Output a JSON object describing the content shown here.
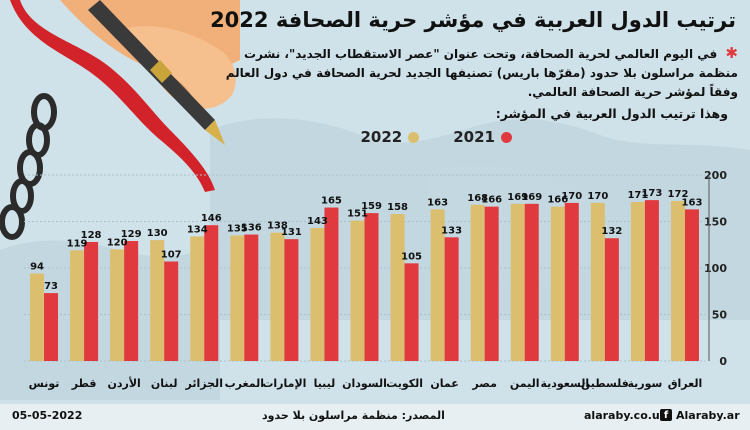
{
  "title": "ترتيب الدول العربية في مؤشر حرية الصحافة 2022",
  "intro": {
    "t1": "في اليوم العالمي لحرية الصحافة، وتحت عنوان ",
    "t2": "\"عصر الاستقطاب الجديد\"",
    "t3": "، نشرت ",
    "t4": "منظمة مراسلون بلا حدود",
    "t5": " (مقرّها باريس) تصنيفها الجديد ",
    "t6": "لحرية الصحافة",
    "t7": " في دول العالم ",
    "t8": "وفقاً لمؤشر حرية الصحافة العالمي."
  },
  "subtitle": "وهذا ترتيب الدول العربية في المؤشر:",
  "legend": {
    "y2021": "2021",
    "y2022": "2022"
  },
  "colors": {
    "y2021": "#e03a3e",
    "y2022": "#dcbf6e",
    "star": "#e03a3e"
  },
  "chart_data": {
    "type": "bar",
    "title": "ترتيب الدول العربية في مؤشر حرية الصحافة 2022",
    "xlabel": "",
    "ylabel": "",
    "ylim": [
      0,
      200
    ],
    "yticks": [
      0,
      50,
      100,
      150,
      200
    ],
    "categories": [
      "العراق",
      "سورية",
      "فلسطين",
      "السعودية",
      "اليمن",
      "مصر",
      "عمان",
      "الكويت",
      "السودان",
      "ليبيا",
      "الإمارات",
      "المغرب",
      "الجزائر",
      "لبنان",
      "الأردن",
      "قطر",
      "تونس"
    ],
    "series": [
      {
        "name": "2022",
        "values": [
          172,
          171,
          170,
          166,
          169,
          168,
          163,
          158,
          151,
          143,
          138,
          135,
          134,
          130,
          120,
          119,
          94
        ]
      },
      {
        "name": "2021",
        "values": [
          163,
          173,
          132,
          170,
          169,
          166,
          133,
          105,
          159,
          165,
          131,
          136,
          146,
          107,
          129,
          128,
          73
        ]
      }
    ]
  },
  "footer": {
    "date": "05-05-2022",
    "source": "المصدر: منظمة مراسلون بلا حدود",
    "site1": "alaraby.co.uk",
    "site2": "Alaraby.ar",
    "fb_icon": "facebook-icon"
  }
}
